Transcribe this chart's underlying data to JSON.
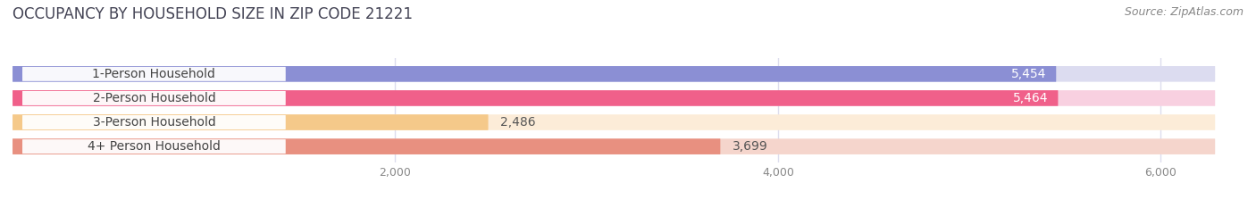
{
  "title": "OCCUPANCY BY HOUSEHOLD SIZE IN ZIP CODE 21221",
  "source": "Source: ZipAtlas.com",
  "categories": [
    "1-Person Household",
    "2-Person Household",
    "3-Person Household",
    "4+ Person Household"
  ],
  "values": [
    5454,
    5464,
    2486,
    3699
  ],
  "bar_colors": [
    "#8b8fd4",
    "#f0608a",
    "#f5c98a",
    "#e89080"
  ],
  "bar_bg_colors": [
    "#dcdcf0",
    "#f8d0e0",
    "#fcecd8",
    "#f5d5cc"
  ],
  "value_label_colors": [
    "white",
    "white",
    "#666666",
    "#666666"
  ],
  "xlim_max": 6400,
  "xticks": [
    2000,
    4000,
    6000
  ],
  "xtick_labels": [
    "2,000",
    "4,000",
    "6,000"
  ],
  "title_fontsize": 12,
  "source_fontsize": 9,
  "bar_label_fontsize": 10,
  "category_fontsize": 10,
  "background_color": "#ffffff",
  "grid_color": "#ddddee"
}
